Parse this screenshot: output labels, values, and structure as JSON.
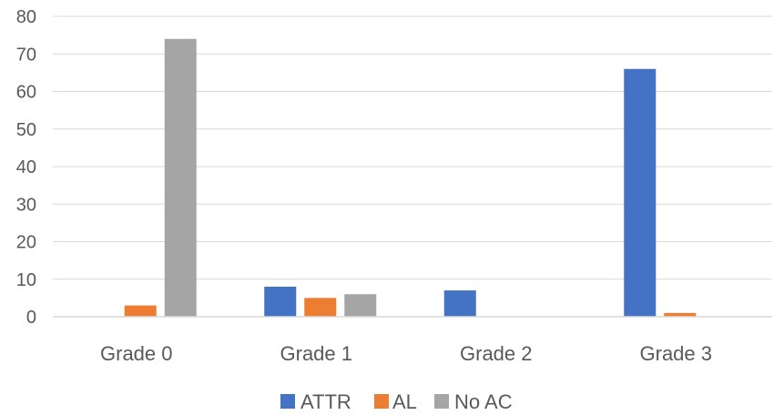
{
  "chart_data": {
    "type": "bar",
    "categories": [
      "Grade 0",
      "Grade 1",
      "Grade 2",
      "Grade 3"
    ],
    "series": [
      {
        "name": "ATTR",
        "color": "#4472c4",
        "values": [
          0,
          8,
          7,
          66
        ]
      },
      {
        "name": "AL",
        "color": "#ed7d31",
        "values": [
          3,
          5,
          0,
          1
        ]
      },
      {
        "name": "No AC",
        "color": "#a5a5a5",
        "values": [
          74,
          6,
          0,
          0
        ]
      }
    ],
    "title": "",
    "xlabel": "",
    "ylabel": "",
    "ylim": [
      0,
      80
    ],
    "yticks": [
      0,
      10,
      20,
      30,
      40,
      50,
      60,
      70,
      80
    ],
    "grid": true,
    "legend_position": "bottom"
  }
}
